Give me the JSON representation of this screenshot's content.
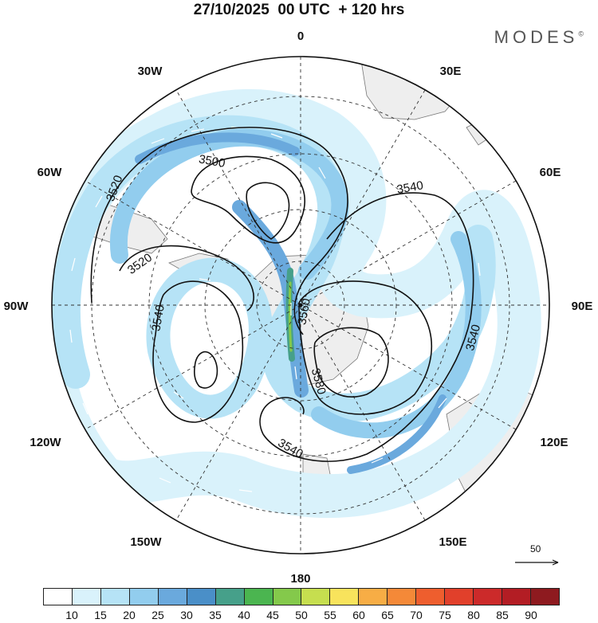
{
  "header": {
    "title": "27/10/2025  00 UTC  + 120 hrs",
    "brand": "MODES",
    "brand_mark": "©"
  },
  "map": {
    "projection": "south-polar-stereographic",
    "variable": "500 hPa geopotential height (m) and wind speed (m/s)",
    "longitude_labels": [
      "0",
      "30E",
      "60E",
      "90E",
      "120E",
      "150E",
      "180",
      "150W",
      "120W",
      "90W",
      "60W",
      "30W"
    ],
    "contours": [
      {
        "id": "c3500",
        "label": "3500"
      },
      {
        "id": "c3520a",
        "label": "3520"
      },
      {
        "id": "c3520b",
        "label": "3520"
      },
      {
        "id": "c3540a",
        "label": "3540"
      },
      {
        "id": "c3540b",
        "label": "3540"
      },
      {
        "id": "c3540c",
        "label": "3540"
      },
      {
        "id": "c3540d",
        "label": "3540"
      },
      {
        "id": "c3560",
        "label": "3560"
      },
      {
        "id": "c3580",
        "label": "3580"
      }
    ],
    "land_color": "#eeeeee",
    "reference_vector": {
      "value": "50"
    }
  },
  "colorbar": {
    "colors": [
      "#ffffff",
      "#d9f2fb",
      "#b6e3f6",
      "#92cdee",
      "#6aa9dd",
      "#4a8fc8",
      "#46a08a",
      "#4bb550",
      "#84c94b",
      "#c6de4f",
      "#f8e35c",
      "#f7ad45",
      "#f48938",
      "#ee5e2e",
      "#e1402b",
      "#cc2a2a",
      "#b31d24",
      "#8e1a1f"
    ],
    "labels": [
      "10",
      "15",
      "20",
      "25",
      "30",
      "35",
      "40",
      "45",
      "50",
      "55",
      "60",
      "65",
      "70",
      "75",
      "80",
      "85",
      "90"
    ]
  }
}
